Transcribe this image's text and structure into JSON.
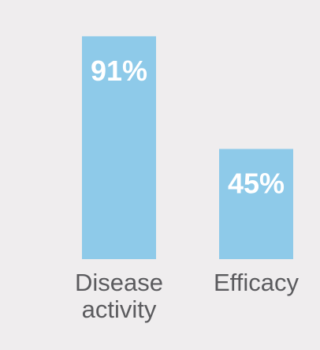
{
  "chart_data": {
    "type": "bar",
    "categories": [
      [
        "Disease",
        "activity"
      ],
      [
        "Efficacy"
      ]
    ],
    "values": [
      91,
      45
    ],
    "value_labels": [
      "91%",
      "45%"
    ],
    "ylim": [
      0,
      100
    ],
    "grid": false,
    "title": "",
    "xlabel": "",
    "ylabel": ""
  },
  "colors": {
    "background": "#efedee",
    "bar": "#8ecae9",
    "value_text": "#ffffff",
    "category_text": "#5b5b5e"
  }
}
